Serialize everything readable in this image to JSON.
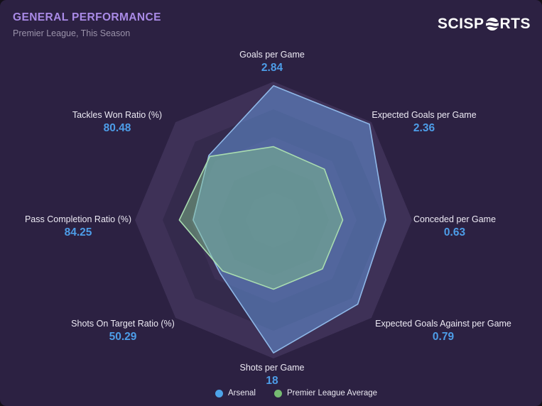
{
  "header": {
    "title": "GENERAL PERFORMANCE",
    "subtitle": "Premier League, This Season",
    "brand": {
      "full": "SCISPORTS",
      "text_left": "SCISP",
      "text_right": "RTS"
    }
  },
  "colors": {
    "card_bg": "#2c2142",
    "title": "#a98ae6",
    "subtitle": "#9a92a9",
    "axis_label": "#edeaf4",
    "axis_value": "#4d9de8",
    "ring_colors": [
      "#3e3157",
      "#342a4c",
      "#3c3055",
      "#342a4c",
      "#393052"
    ],
    "arsenal_fill": "rgba(100,148,216,0.55)",
    "arsenal_stroke": "#8fb8e8",
    "league_fill": "rgba(132,196,142,0.48)",
    "league_stroke": "#a9dcb0"
  },
  "chart_data": {
    "type": "radar",
    "title": "GENERAL PERFORMANCE",
    "subtitle": "Premier League, This Season",
    "rings": 5,
    "grid": "octagonal, concentric alternating shades",
    "legend_position": "bottom",
    "axes": [
      {
        "label": "Goals per Game",
        "value": "2.84"
      },
      {
        "label": "Expected Goals per Game",
        "value": "2.36"
      },
      {
        "label": "Conceded per Game",
        "value": "0.63"
      },
      {
        "label": "Expected Goals Against per Game",
        "value": "0.79"
      },
      {
        "label": "Shots per Game",
        "value": "18"
      },
      {
        "label": "Shots On Target Ratio (%)",
        "value": "50.29"
      },
      {
        "label": "Pass Completion Ratio (%)",
        "value": "84.25"
      },
      {
        "label": "Tackles Won Ratio (%)",
        "value": "80.48"
      }
    ],
    "series": [
      {
        "name": "Arsenal",
        "color": "#4da3e8",
        "values": [
          2.84,
          2.36,
          0.63,
          0.79,
          18,
          50.29,
          84.25,
          80.48
        ],
        "fractions": [
          0.97,
          0.98,
          0.81,
          0.86,
          0.96,
          0.545,
          0.58,
          0.66
        ]
      },
      {
        "name": "Premier League Average",
        "color": "#76bb72",
        "fractions": [
          0.53,
          0.52,
          0.5,
          0.5,
          0.5,
          0.52,
          0.68,
          0.65
        ]
      }
    ]
  },
  "legend": {
    "items": [
      {
        "label": "Arsenal",
        "color": "#4da3e8"
      },
      {
        "label": "Premier League Average",
        "color": "#76bb72"
      }
    ]
  }
}
